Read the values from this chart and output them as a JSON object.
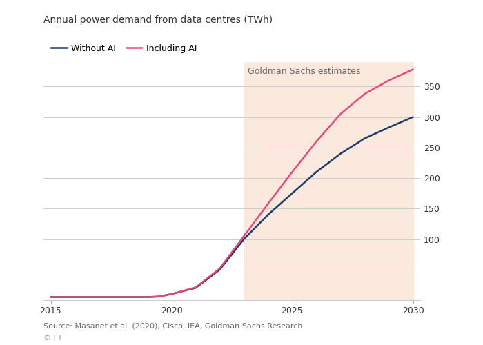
{
  "title": "Annual power demand from data centres (TWh)",
  "legend_without_ai": "Without AI",
  "legend_including_ai": "Including AI",
  "annotation": "Goldman Sachs estimates",
  "source": "Source: Masanet et al. (2020), Cisco, IEA, Goldman Sachs Research",
  "ft_label": "© FT",
  "color_without_ai": "#1a3a6b",
  "color_including_ai": "#e8477a",
  "shade_color": "#fce9de",
  "shade_alpha": 1.0,
  "shade_xmin": 2023,
  "shade_xmax": 2030,
  "xlim": [
    2014.7,
    2030.3
  ],
  "ylim": [
    0,
    390
  ],
  "yticks": [
    50,
    100,
    150,
    200,
    250,
    300,
    350
  ],
  "ytick_labels": [
    "",
    "100",
    "150",
    "200",
    "250",
    "300",
    "350"
  ],
  "xticks": [
    2015,
    2020,
    2025,
    2030
  ],
  "background_color": "#ffffff",
  "grid_color": "#cccccc",
  "x_without_ai": [
    2015,
    2016,
    2017,
    2018,
    2019,
    2019.5,
    2020,
    2021,
    2022,
    2023,
    2024,
    2025,
    2026,
    2027,
    2028,
    2029,
    2030
  ],
  "y_without_ai": [
    5,
    5,
    5,
    5,
    5,
    6,
    10,
    20,
    50,
    100,
    140,
    175,
    210,
    240,
    265,
    283,
    300
  ],
  "x_including_ai": [
    2015,
    2016,
    2017,
    2018,
    2019,
    2019.5,
    2020,
    2021,
    2022,
    2023,
    2024,
    2025,
    2026,
    2027,
    2028,
    2029,
    2030
  ],
  "y_including_ai": [
    5,
    5,
    5,
    5,
    5,
    6,
    10,
    21,
    52,
    105,
    158,
    210,
    260,
    305,
    338,
    360,
    378
  ],
  "line_width": 1.8,
  "title_fontsize": 10,
  "label_fontsize": 9,
  "tick_fontsize": 9,
  "annotation_fontsize": 9,
  "source_fontsize": 8
}
